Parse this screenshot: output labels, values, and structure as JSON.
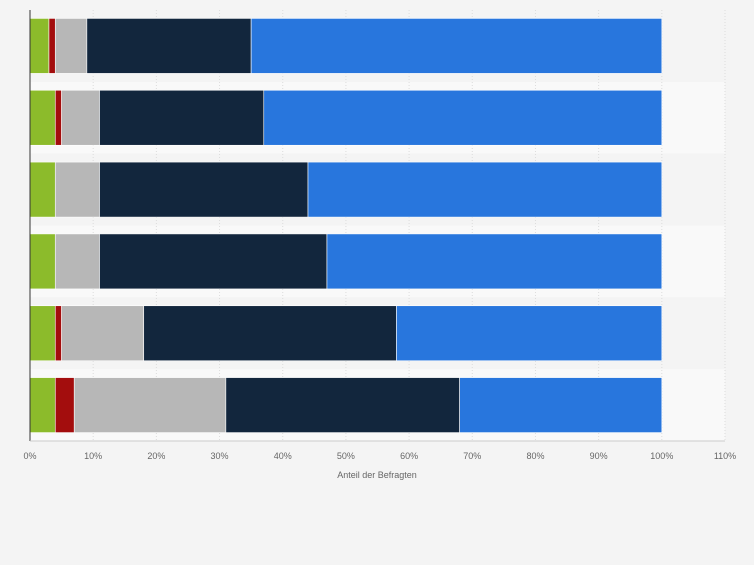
{
  "chart_data": {
    "type": "bar",
    "orientation": "horizontal",
    "stacked": true,
    "title": "",
    "xlabel": "Anteil der Befragten",
    "ylabel": "",
    "xlim": [
      0,
      110
    ],
    "x_ticks": [
      "0%",
      "10%",
      "20%",
      "30%",
      "40%",
      "50%",
      "60%",
      "70%",
      "80%",
      "90%",
      "100%",
      "110%"
    ],
    "categories": [
      "",
      "",
      "",
      "",
      "",
      ""
    ],
    "series": [
      {
        "color": "#8cbb2b",
        "values": [
          3.0,
          4.0,
          4.0,
          4.0,
          4.0,
          4.0
        ]
      },
      {
        "color": "#a30d0d",
        "values": [
          1.0,
          1.0,
          0.0,
          0.0,
          1.0,
          3.0
        ]
      },
      {
        "color": "#b7b7b7",
        "values": [
          5.0,
          6.0,
          7.0,
          7.0,
          13.0,
          24.0
        ]
      },
      {
        "color": "#12263d",
        "values": [
          26.0,
          26.0,
          33.0,
          36.0,
          40.0,
          37.0
        ]
      },
      {
        "color": "#2876dd",
        "values": [
          65.0,
          63.0,
          56.0,
          53.0,
          42.0,
          32.0
        ]
      }
    ],
    "grid": true,
    "legend": "none"
  }
}
